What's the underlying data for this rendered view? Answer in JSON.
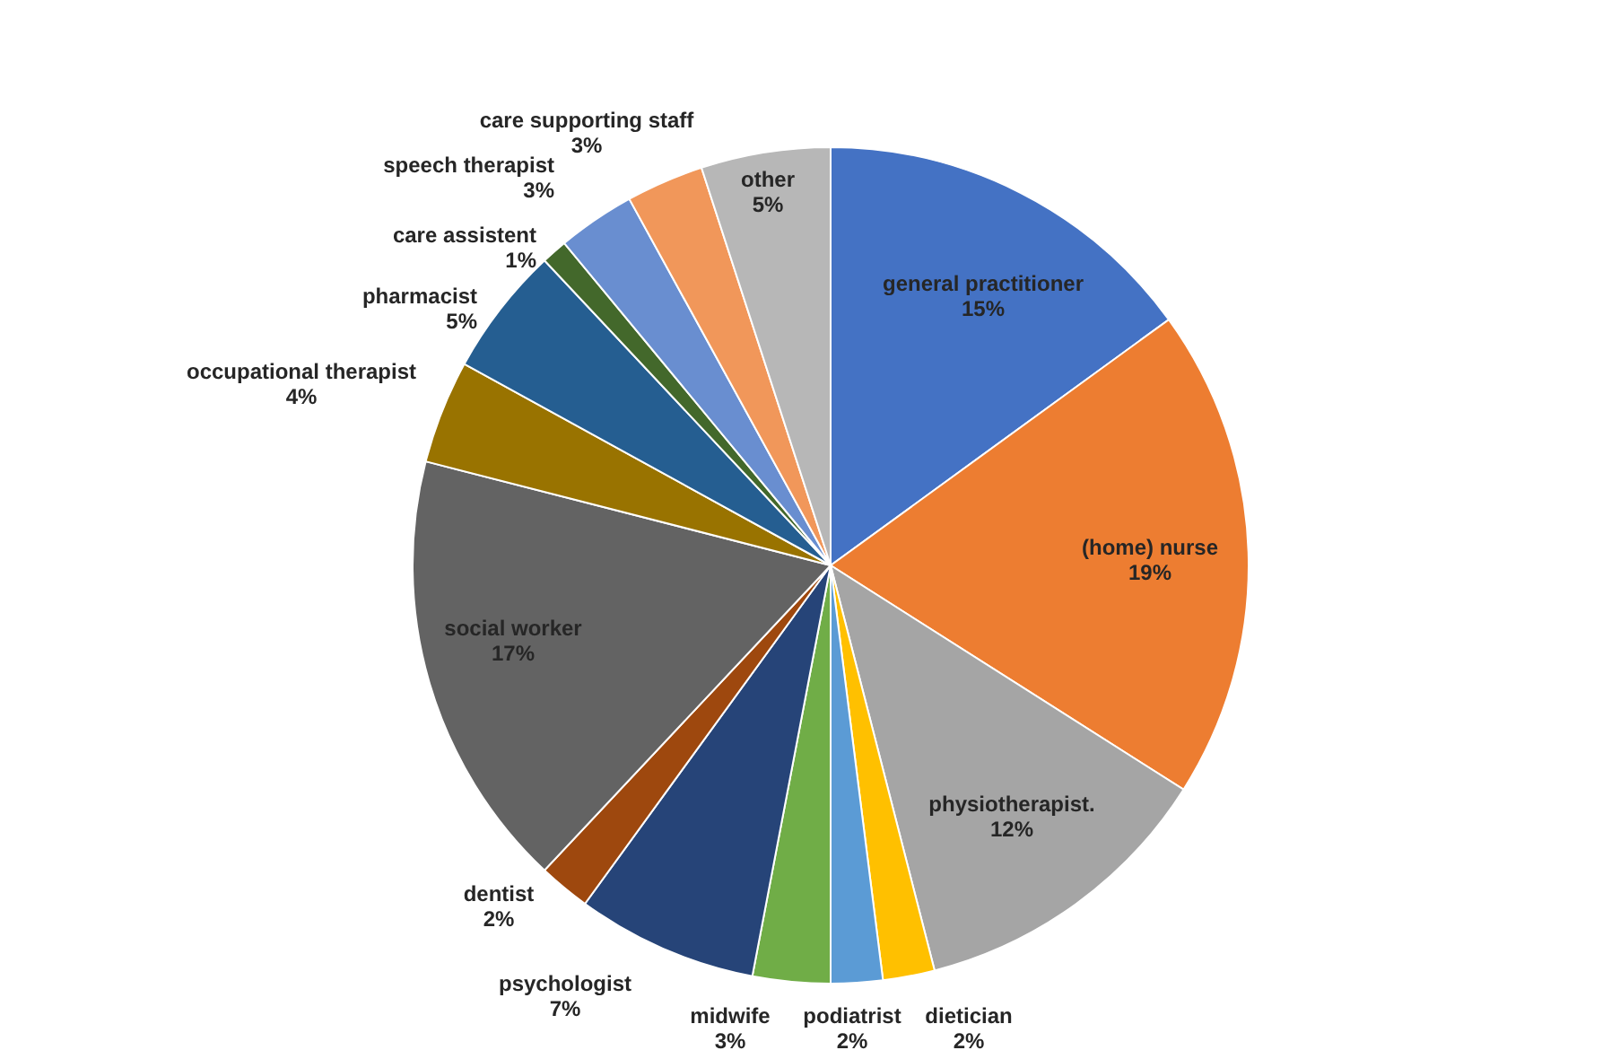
{
  "chart_data": {
    "type": "pie",
    "categories": [
      "general practitioner",
      "(home) nurse",
      "physiotherapist.",
      "dietician",
      "podiatrist",
      "midwife",
      "psychologist",
      "dentist",
      "social worker",
      "occupational therapist",
      "pharmacist",
      "care assistent",
      "speech therapist",
      "care supporting staff",
      "other"
    ],
    "values": [
      15,
      19,
      12,
      2,
      2,
      3,
      7,
      2,
      17,
      4,
      5,
      1,
      3,
      3,
      5
    ],
    "value_labels": [
      "15%",
      "19%",
      "12%",
      "2%",
      "2%",
      "3%",
      "7%",
      "2%",
      "17%",
      "4%",
      "5%",
      "1%",
      "3%",
      "3%",
      "5%"
    ],
    "colors": [
      "#4472c4",
      "#ed7d31",
      "#a5a5a5",
      "#ffc000",
      "#5b9bd5",
      "#70ad47",
      "#264478",
      "#9e480e",
      "#636363",
      "#997300",
      "#255e91",
      "#43682b",
      "#698ed0",
      "#f1975a",
      "#b7b7b7"
    ]
  }
}
